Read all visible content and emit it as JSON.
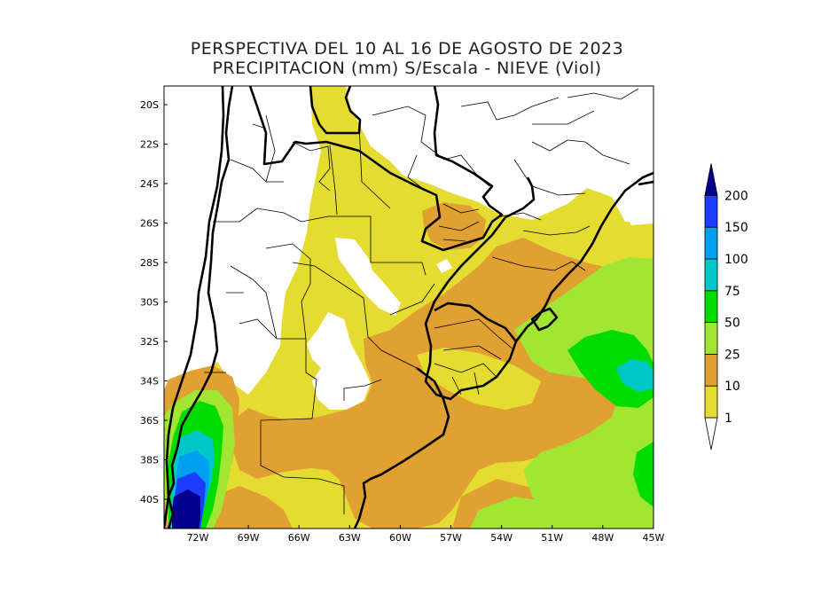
{
  "title": {
    "line1": "PERSPECTIVA DEL 10 AL 16 DE AGOSTO DE 2023",
    "line2": "PRECIPITACION (mm) S/Escala - NIEVE (Viol)"
  },
  "map": {
    "lat_labels": [
      "20S",
      "22S",
      "24S",
      "26S",
      "28S",
      "30S",
      "32S",
      "34S",
      "36S",
      "38S",
      "40S"
    ],
    "lon_labels": [
      "72W",
      "69W",
      "66W",
      "63W",
      "60W",
      "57W",
      "54W",
      "51W",
      "48W",
      "45W"
    ],
    "extent": {
      "lon_min": -74,
      "lon_max": -45,
      "lat_min": -41.5,
      "lat_max": -19
    }
  },
  "legend": {
    "levels": [
      "1",
      "10",
      "25",
      "50",
      "75",
      "100",
      "150",
      "200"
    ],
    "colors": {
      "under_1": "#ffffff",
      "1_10": "#e5dc32",
      "10_25": "#e1a032",
      "25_50": "#a0e632",
      "50_75": "#00dc00",
      "75_100": "#00c8c8",
      "100_150": "#00a0f0",
      "150_200": "#1e3cff",
      "over_200": "#00008c"
    }
  }
}
